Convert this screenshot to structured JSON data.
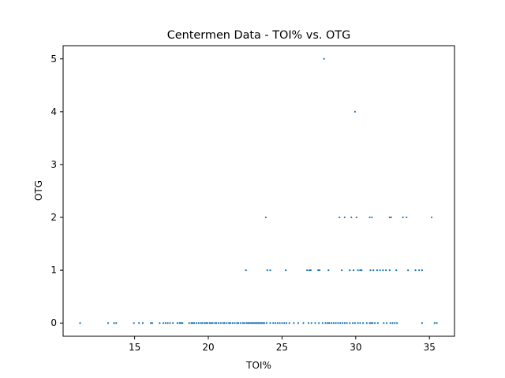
{
  "chart_data": {
    "type": "scatter",
    "title": "Centermen Data - TOI% vs. OTG",
    "xlabel": "TOI%",
    "ylabel": "OTG",
    "xlim": [
      10.15,
      36.7
    ],
    "ylim": [
      -0.25,
      5.25
    ],
    "xticks": [
      "15",
      "20",
      "25",
      "30",
      "35"
    ],
    "yticks": [
      "0",
      "1",
      "2",
      "3",
      "4",
      "5"
    ],
    "grid": false,
    "color": "#1f77b4",
    "series": [
      {
        "x": [
          11.3,
          13.2,
          13.6,
          13.75,
          14.95,
          15.3,
          15.55,
          16.1,
          16.2,
          16.7,
          16.95,
          17.1,
          17.25,
          17.4,
          17.6,
          17.9,
          18.05,
          18.15,
          18.25,
          18.7,
          18.85,
          18.95,
          19.05,
          19.2,
          19.35,
          19.5,
          19.6,
          19.75,
          19.85,
          19.95,
          20.1,
          20.2,
          20.3,
          20.45,
          20.55,
          20.7,
          20.85,
          21.0,
          21.1,
          21.25,
          21.4,
          21.5,
          21.65,
          21.8,
          21.95,
          22.05,
          22.2,
          22.35,
          22.45,
          22.6,
          22.7,
          22.8,
          22.9,
          23.0,
          23.1,
          23.2,
          23.3,
          23.4,
          23.5,
          23.6,
          23.7,
          23.8,
          23.95,
          24.2,
          24.4,
          24.55,
          24.7,
          24.85,
          25.0,
          25.15,
          25.3,
          25.5,
          25.8,
          26.1,
          26.45,
          26.8,
          27.0,
          27.25,
          27.5,
          27.75,
          27.95,
          28.1,
          28.2,
          28.35,
          28.5,
          28.65,
          28.8,
          28.95,
          29.1,
          29.25,
          29.4,
          29.6,
          29.8,
          29.95,
          30.15,
          30.3,
          30.5,
          30.75,
          30.95,
          31.05,
          31.15,
          31.3,
          31.5,
          31.9,
          32.1,
          32.35,
          32.5,
          32.65,
          32.8,
          34.5,
          35.35,
          35.5
        ],
        "y": [
          0,
          0,
          0,
          0,
          0,
          0,
          0,
          0,
          0,
          0,
          0,
          0,
          0,
          0,
          0,
          0,
          0,
          0,
          0,
          0,
          0,
          0,
          0,
          0,
          0,
          0,
          0,
          0,
          0,
          0,
          0,
          0,
          0,
          0,
          0,
          0,
          0,
          0,
          0,
          0,
          0,
          0,
          0,
          0,
          0,
          0,
          0,
          0,
          0,
          0,
          0,
          0,
          0,
          0,
          0,
          0,
          0,
          0,
          0,
          0,
          0,
          0,
          0,
          0,
          0,
          0,
          0,
          0,
          0,
          0,
          0,
          0,
          0,
          0,
          0,
          0,
          0,
          0,
          0,
          0,
          0,
          0,
          0,
          0,
          0,
          0,
          0,
          0,
          0,
          0,
          0,
          0,
          0,
          0,
          0,
          0,
          0,
          0,
          0,
          0,
          0,
          0,
          0,
          0,
          0,
          0,
          0,
          0,
          0,
          0,
          0,
          0
        ]
      },
      {
        "x": [
          22.55,
          24.0,
          24.2,
          25.25,
          26.7,
          26.85,
          26.95,
          27.45,
          27.55,
          28.15,
          29.05,
          29.6,
          29.85,
          30.15,
          30.3,
          30.4,
          31.0,
          31.2,
          31.45,
          31.65,
          31.85,
          32.05,
          32.3,
          32.75,
          33.55,
          34.05,
          34.3,
          34.5
        ],
        "y": [
          1,
          1,
          1,
          1,
          1,
          1,
          1,
          1,
          1,
          1,
          1,
          1,
          1,
          1,
          1,
          1,
          1,
          1,
          1,
          1,
          1,
          1,
          1,
          1,
          1,
          1,
          1,
          1
        ]
      },
      {
        "x": [
          23.9,
          28.9,
          29.25,
          29.7,
          30.05,
          30.95,
          31.1,
          32.3,
          32.4,
          33.2,
          33.45,
          35.15
        ],
        "y": [
          2,
          2,
          2,
          2,
          2,
          2,
          2,
          2,
          2,
          2,
          2,
          2
        ]
      },
      {
        "x": [
          27.85,
          29.95
        ],
        "y": [
          5,
          4
        ]
      }
    ]
  }
}
